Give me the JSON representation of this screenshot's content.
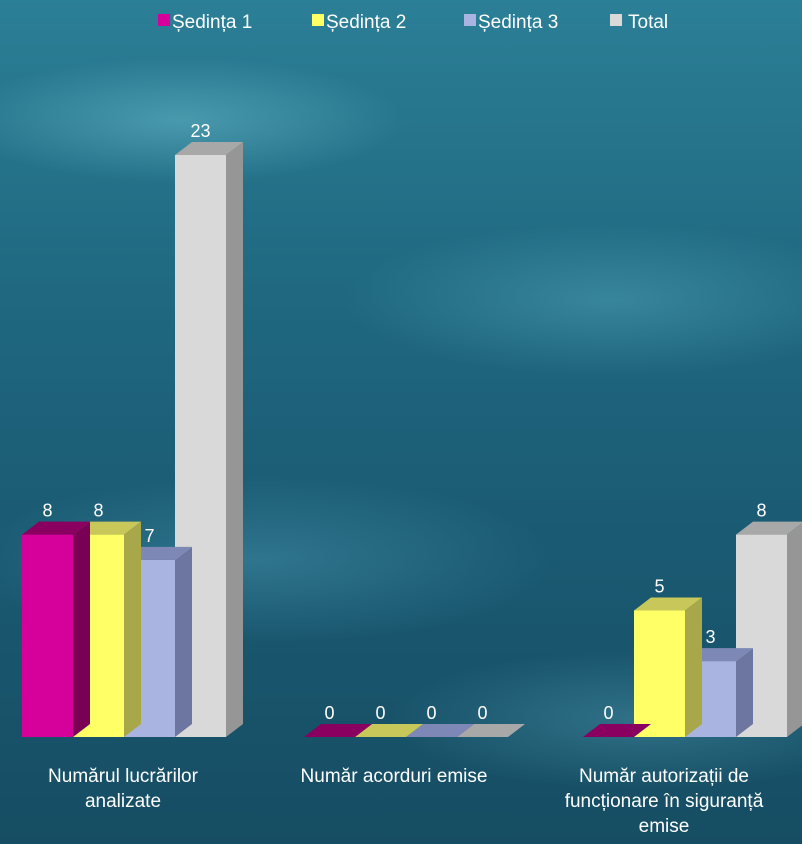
{
  "chart_data": {
    "type": "bar",
    "categories": [
      [
        "Numărul lucrărilor",
        "analizate"
      ],
      [
        "Număr acorduri emise"
      ],
      [
        "Număr autorizații de",
        "funcționare în siguranță",
        "emise"
      ]
    ],
    "series": [
      {
        "name": "Ședința 1",
        "values": [
          8,
          0,
          0
        ]
      },
      {
        "name": "Ședința 2",
        "values": [
          8,
          0,
          5
        ]
      },
      {
        "name": "Ședința 3",
        "values": [
          7,
          0,
          3
        ]
      },
      {
        "name": "Total",
        "values": [
          23,
          0,
          8
        ]
      }
    ],
    "ylim": [
      0,
      23
    ],
    "legend_position": "top",
    "grid": false,
    "colors": {
      "series": [
        "#d6009a",
        "#ffff66",
        "#aab4e0",
        "#d9d9d9"
      ],
      "tops": [
        "#8a0060",
        "#c8c85a",
        "#7e88b6",
        "#a8a8a8"
      ],
      "sides": [
        "#7a0055",
        "#a8a84a",
        "#6d76a0",
        "#969696"
      ]
    }
  }
}
